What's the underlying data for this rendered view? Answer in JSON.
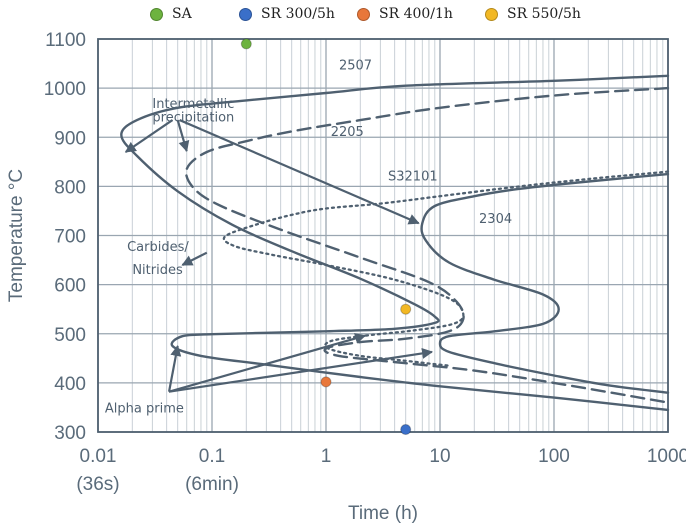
{
  "chart_data": {
    "type": "line",
    "title": "",
    "xlabel": "Time (h)",
    "ylabel": "Temperature °C",
    "xscale": "log",
    "xlim": [
      0.01,
      1000
    ],
    "ylim": [
      300,
      1100
    ],
    "grid": true,
    "x_ticks": [
      {
        "value": 0.01,
        "label": "0.01",
        "sublabel": "(36s)"
      },
      {
        "value": 0.1,
        "label": "0.1",
        "sublabel": "(6min)"
      },
      {
        "value": 1,
        "label": "1",
        "sublabel": ""
      },
      {
        "value": 10,
        "label": "10",
        "sublabel": ""
      },
      {
        "value": 100,
        "label": "100",
        "sublabel": ""
      },
      {
        "value": 1000,
        "label": "1000",
        "sublabel": ""
      }
    ],
    "y_ticks": [
      300,
      400,
      500,
      600,
      700,
      800,
      900,
      1000,
      1100
    ],
    "legend": {
      "position": "top",
      "entries": [
        {
          "name": "SA",
          "color": "#6db33f"
        },
        {
          "name": "SR 300/5h",
          "color": "#3a6fc9"
        },
        {
          "name": "SR 400/1h",
          "color": "#e8773a"
        },
        {
          "name": "SR 550/5h",
          "color": "#f2b824"
        }
      ]
    },
    "points": [
      {
        "name": "SA",
        "x": 0.2,
        "y": 1090,
        "color": "#6db33f"
      },
      {
        "name": "SR 300/5h",
        "x": 5,
        "y": 305,
        "color": "#3a6fc9"
      },
      {
        "name": "SR 400/1h",
        "x": 1,
        "y": 402,
        "color": "#e8773a"
      },
      {
        "name": "SR 550/5h",
        "x": 5,
        "y": 550,
        "color": "#f2b824"
      }
    ],
    "series": [
      {
        "name": "2507",
        "style": "solid",
        "color": "#4f6070",
        "label": {
          "text": "2507",
          "x": 1.3,
          "y": 1038
        },
        "points": [
          [
            1000,
            1025
          ],
          [
            100,
            1015
          ],
          [
            5,
            1005
          ],
          [
            1,
            990
          ],
          [
            0.2,
            975
          ],
          [
            0.05,
            960
          ],
          [
            0.022,
            935
          ],
          [
            0.016,
            905
          ],
          [
            0.022,
            862
          ],
          [
            0.05,
            790
          ],
          [
            0.15,
            722
          ],
          [
            0.5,
            668
          ],
          [
            2,
            612
          ],
          [
            6,
            560
          ],
          [
            9,
            535
          ],
          [
            9,
            522
          ],
          [
            4,
            510
          ],
          [
            1,
            505
          ],
          [
            0.3,
            502
          ],
          [
            0.1,
            499
          ],
          [
            0.055,
            495
          ],
          [
            0.045,
            475
          ],
          [
            0.08,
            455
          ],
          [
            0.3,
            437
          ],
          [
            2,
            412
          ],
          [
            10,
            393
          ],
          [
            100,
            370
          ],
          [
            1000,
            345
          ]
        ]
      },
      {
        "name": "2205",
        "style": "dashed",
        "color": "#4f6070",
        "label": {
          "text": "2205",
          "x": 1.1,
          "y": 903
        },
        "points": [
          [
            1000,
            1000
          ],
          [
            100,
            985
          ],
          [
            10,
            960
          ],
          [
            2,
            935
          ],
          [
            0.5,
            912
          ],
          [
            0.2,
            892
          ],
          [
            0.09,
            870
          ],
          [
            0.06,
            835
          ],
          [
            0.07,
            795
          ],
          [
            0.12,
            760
          ],
          [
            0.4,
            712
          ],
          [
            2,
            655
          ],
          [
            8,
            605
          ],
          [
            14,
            565
          ],
          [
            16,
            530
          ],
          [
            12,
            505
          ],
          [
            5,
            490
          ],
          [
            2,
            483
          ],
          [
            1,
            470
          ],
          [
            1.3,
            455
          ],
          [
            5,
            440
          ],
          [
            20,
            425
          ],
          [
            100,
            400
          ],
          [
            1000,
            360
          ]
        ]
      },
      {
        "name": "S32101",
        "style": "dotted",
        "color": "#4f6070",
        "label": {
          "text": "S32101",
          "x": 3.5,
          "y": 812
        },
        "points": [
          [
            1000,
            830
          ],
          [
            200,
            815
          ],
          [
            50,
            800
          ],
          [
            10,
            780
          ],
          [
            3,
            765
          ],
          [
            1,
            755
          ],
          [
            0.5,
            742
          ],
          [
            0.25,
            723
          ],
          [
            0.13,
            698
          ],
          [
            0.16,
            678
          ],
          [
            0.35,
            660
          ],
          [
            1,
            640
          ],
          [
            4,
            610
          ],
          [
            12,
            572
          ],
          [
            16,
            540
          ],
          [
            13,
            520
          ],
          [
            6,
            507
          ],
          [
            2.2,
            496
          ],
          [
            1.1,
            485
          ],
          [
            1.05,
            470
          ],
          [
            2,
            455
          ],
          [
            5,
            445
          ],
          [
            9,
            438
          ],
          [
            12,
            435
          ]
        ]
      },
      {
        "name": "2304",
        "style": "solid",
        "color": "#4f6070",
        "label": {
          "text": "2304",
          "x": 22,
          "y": 725
        },
        "points": [
          [
            1000,
            825
          ],
          [
            200,
            810
          ],
          [
            50,
            795
          ],
          [
            20,
            780
          ],
          [
            9,
            760
          ],
          [
            7,
            725
          ],
          [
            7.5,
            690
          ],
          [
            12,
            645
          ],
          [
            30,
            610
          ],
          [
            80,
            580
          ],
          [
            110,
            550
          ],
          [
            80,
            520
          ],
          [
            30,
            505
          ],
          [
            12,
            495
          ],
          [
            10,
            480
          ],
          [
            12,
            463
          ],
          [
            30,
            440
          ],
          [
            100,
            415
          ],
          [
            300,
            395
          ],
          [
            1000,
            380
          ]
        ]
      }
    ],
    "annotations": [
      {
        "text": "Intermetallic",
        "x": 0.03,
        "y": 960
      },
      {
        "text": "precipitation",
        "x": 0.03,
        "y": 932
      },
      {
        "text": "2205",
        "x": 1.1,
        "y": 903
      },
      {
        "text": "Carbides/",
        "x": 0.018,
        "y": 668
      },
      {
        "text": "Nitrides",
        "x": 0.02,
        "y": 622
      },
      {
        "text": "Alpha prime",
        "x": 0.0115,
        "y": 340
      }
    ],
    "arrows": [
      {
        "from": [
          0.045,
          935
        ],
        "to": [
          0.0175,
          870
        ]
      },
      {
        "from": [
          0.05,
          935
        ],
        "to": [
          0.06,
          872
        ]
      },
      {
        "from": [
          0.052,
          935
        ],
        "to": [
          6.5,
          725
        ]
      },
      {
        "from": [
          0.09,
          665
        ],
        "to": [
          0.055,
          640
        ]
      },
      {
        "from": [
          0.042,
          382
        ],
        "to": [
          0.05,
          475
        ]
      },
      {
        "from": [
          0.042,
          382
        ],
        "to": [
          2.2,
          496
        ]
      },
      {
        "from": [
          0.042,
          382
        ],
        "to": [
          8.5,
          463
        ]
      }
    ]
  }
}
